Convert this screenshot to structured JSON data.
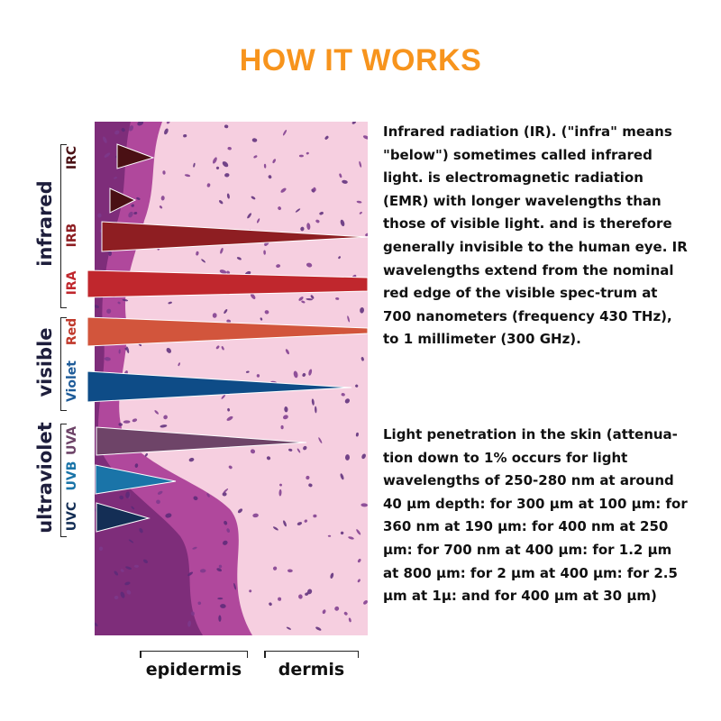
{
  "title": "HOW IT WORKS",
  "colors": {
    "title": "#F7941D",
    "irc": "#4A1014",
    "irb": "#8E1E22",
    "ira": "#C0272D",
    "red": "#D2553C",
    "violet": "#0E4C87",
    "uva": "#6E4468",
    "uvb": "#1A74A8",
    "uvc": "#142E55",
    "label_infrared": "#8E1E22",
    "label_visible_red": "#C0392B",
    "label_visible_violet": "#1F5C99",
    "label_uva": "#6E4468",
    "label_uvb": "#1A74A8",
    "label_uvc": "#142E55"
  },
  "groups": {
    "infrared": {
      "label": "infrared",
      "bands": {
        "irc": "IRC",
        "irb": "IRB",
        "ira": "IRA"
      }
    },
    "visible": {
      "label": "visible",
      "bands": {
        "red": "Red",
        "violet": "Violet"
      }
    },
    "ultraviolet": {
      "label": "ultraviolet",
      "bands": {
        "uva": "UVA",
        "uvb": "UVB",
        "uvc": "UVC"
      }
    }
  },
  "layers": {
    "epidermis": "epidermis",
    "dermis": "dermis"
  },
  "paragraphs": {
    "ir": "Infrared radiation (IR). (\"infra\" means \"below\") sometimes called infrared light. is electromagnetic radiation (EMR) with longer wavelengths than those of visible light. and is therefore generally invisible to the human eye. IR wavelengths extend from the nominal red edge of the visible spec-trum at 700 nanometers (frequency 430 THz), to 1 millimeter (300 GHz).",
    "penetration": "Light penetration in the skin (attenua-tion down to 1% occurs for light wavelengths of 250-280 nm at around 40 μm depth: for 300 μm at 100 μm: for 360 nm at 190 μm: for 400 nm at 250 μm: for 700 nm at 400 μm: for 1.2 μm at 800 μm: for 2 μm at 400 μm: for 2.5 μm at 1μ: and for 400 μm at 30 μm)"
  }
}
